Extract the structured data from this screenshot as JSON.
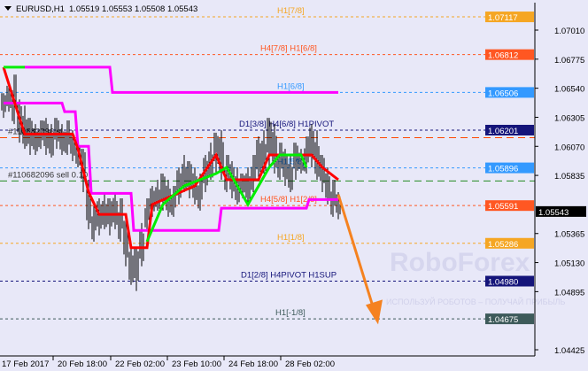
{
  "header": {
    "symbol": "EURUSD,H1",
    "ohlc": "1.05519 1.05553 1.05508 1.05543"
  },
  "watermark": "RoboForex",
  "watermark_sub": "ИСПОЛЬЗУЙ РОБОТОВ – ПОЛУЧАЙ ПРИБЫЛЬ",
  "chart_data": {
    "type": "candlestick",
    "ylim": [
      1.0435,
      1.0725
    ],
    "y_ticks": [
      "1.07010",
      "1.06775",
      "1.06540",
      "1.06305",
      "1.06070",
      "1.05835",
      "1.05365",
      "1.05130",
      "1.04895",
      "1.04425"
    ],
    "x_ticks": [
      "17 Feb 2017",
      "20 Feb 18:00",
      "22 Feb 02:00",
      "23 Feb 10:00",
      "24 Feb 18:00",
      "28 Feb 02:00"
    ],
    "current_price": {
      "label": "1.05543",
      "value": 1.05543
    },
    "levels": [
      {
        "price": 1.07117,
        "label": "H1[7/8]",
        "tag": "1.07117",
        "color": "#f5a623"
      },
      {
        "price": 1.06812,
        "label": "H4[7/8] H1[6/8]",
        "tag": "1.06812",
        "color": "#ff5722"
      },
      {
        "price": 1.06506,
        "label": "H1[6/8]",
        "tag": "1.06506",
        "color": "#3399ff"
      },
      {
        "price": 1.06201,
        "label": "D1[3/8] H4[6/8] H1PIVOT",
        "tag": "1.06201",
        "color": "#14147a"
      },
      {
        "price": 1.05896,
        "label": "H1[5/8]",
        "tag": "1.05896",
        "color": "#3399ff"
      },
      {
        "price": 1.05591,
        "label": "H4[5/8] H1[2/8]",
        "tag": "1.05591",
        "color": "#ff5722"
      },
      {
        "price": 1.05286,
        "label": "H1[1/8]",
        "tag": "1.05286",
        "color": "#f5a623"
      },
      {
        "price": 1.0498,
        "label": "D1[2/8] H4PIVOT H1SUP",
        "tag": "1.04980",
        "color": "#14147a"
      },
      {
        "price": 1.04675,
        "label": "H1[-1/8]",
        "tag": "1.04675",
        "color": "#3d5a5a"
      }
    ],
    "orders": [
      {
        "price": 1.0614,
        "label": "#110682096 sl",
        "color": "#ff4500"
      },
      {
        "price": 1.0579,
        "label": "#110682096 sell 0.10",
        "color": "#228b22"
      }
    ],
    "bars": [
      [
        1.065,
        1.063
      ],
      [
        1.066,
        1.0635
      ],
      [
        1.0665,
        1.0625
      ],
      [
        1.0645,
        1.061
      ],
      [
        1.064,
        1.0605
      ],
      [
        1.063,
        1.06
      ],
      [
        1.0625,
        1.06
      ],
      [
        1.0628,
        1.0605
      ],
      [
        1.063,
        1.06
      ],
      [
        1.0625,
        1.0598
      ],
      [
        1.063,
        1.0605
      ],
      [
        1.0625,
        1.06
      ],
      [
        1.0628,
        1.06
      ],
      [
        1.062,
        1.0595
      ],
      [
        1.0615,
        1.059
      ],
      [
        1.0605,
        1.057
      ],
      [
        1.058,
        1.054
      ],
      [
        1.056,
        1.053
      ],
      [
        1.0565,
        1.0535
      ],
      [
        1.057,
        1.054
      ],
      [
        1.0565,
        1.0535
      ],
      [
        1.057,
        1.054
      ],
      [
        1.0565,
        1.053
      ],
      [
        1.055,
        1.051
      ],
      [
        1.053,
        1.0495
      ],
      [
        1.0525,
        1.049
      ],
      [
        1.0545,
        1.051
      ],
      [
        1.0565,
        1.054
      ],
      [
        1.0575,
        1.055
      ],
      [
        1.058,
        1.0555
      ],
      [
        1.0585,
        1.0555
      ],
      [
        1.058,
        1.055
      ],
      [
        1.0575,
        1.055
      ],
      [
        1.059,
        1.056
      ],
      [
        1.06,
        1.057
      ],
      [
        1.0595,
        1.0565
      ],
      [
        1.059,
        1.056
      ],
      [
        1.0585,
        1.0555
      ],
      [
        1.06,
        1.057
      ],
      [
        1.061,
        1.058
      ],
      [
        1.0618,
        1.0585
      ],
      [
        1.062,
        1.058
      ],
      [
        1.06,
        1.057
      ],
      [
        1.0595,
        1.0565
      ],
      [
        1.059,
        1.056
      ],
      [
        1.0585,
        1.0565
      ],
      [
        1.059,
        1.056
      ],
      [
        1.06,
        1.057
      ],
      [
        1.0615,
        1.058
      ],
      [
        1.062,
        1.0585
      ],
      [
        1.063,
        1.059
      ],
      [
        1.0625,
        1.0585
      ],
      [
        1.061,
        1.058
      ],
      [
        1.0605,
        1.0575
      ],
      [
        1.06,
        1.057
      ],
      [
        1.061,
        1.058
      ],
      [
        1.0605,
        1.0585
      ],
      [
        1.0615,
        1.0585
      ],
      [
        1.0625,
        1.059
      ],
      [
        1.062,
        1.058
      ],
      [
        1.06,
        1.057
      ],
      [
        1.059,
        1.056
      ],
      [
        1.058,
        1.055
      ],
      [
        1.057,
        1.0548
      ]
    ],
    "indicators": [
      {
        "color": "#ff00ff",
        "points": [
          [
            4,
            1.0671
          ],
          [
            20,
            1.0671
          ],
          [
            20.5,
            1.06506
          ],
          [
            63,
            1.06506
          ]
        ]
      },
      {
        "color": "#ff00ff",
        "points": [
          [
            0,
            1.0642
          ],
          [
            11,
            1.0642
          ],
          [
            11.5,
            1.0635
          ],
          [
            13.5,
            1.0635
          ],
          [
            14,
            1.0607
          ],
          [
            16,
            1.0607
          ],
          [
            16.5,
            1.0569
          ],
          [
            24,
            1.0569
          ],
          [
            24.5,
            1.0539
          ],
          [
            40.5,
            1.0539
          ],
          [
            41,
            1.0557
          ],
          [
            57,
            1.0557
          ],
          [
            57.5,
            1.0564
          ],
          [
            63,
            1.0564
          ]
        ]
      },
      {
        "color": "#ff0000",
        "points": [
          [
            0,
            1.0671
          ],
          [
            3,
            1.063
          ],
          [
            4,
            1.0617
          ],
          [
            13,
            1.0617
          ],
          [
            14,
            1.0605
          ],
          [
            16,
            1.057
          ],
          [
            18,
            1.0552
          ],
          [
            23,
            1.0552
          ],
          [
            24,
            1.0525
          ],
          [
            27,
            1.0525
          ],
          [
            28,
            1.056
          ],
          [
            36,
            1.0575
          ],
          [
            40,
            1.06
          ],
          [
            42,
            1.058
          ],
          [
            48,
            1.058
          ],
          [
            50,
            1.06
          ],
          [
            58,
            1.06
          ],
          [
            60,
            1.059
          ],
          [
            63,
            1.058
          ]
        ]
      },
      {
        "color": "#00ee00",
        "points": [
          [
            0,
            1.0671
          ],
          [
            4,
            1.0671
          ]
        ]
      },
      {
        "color": "#00ee00",
        "points": [
          [
            27,
            1.053
          ],
          [
            30,
            1.056
          ],
          [
            34,
            1.0575
          ],
          [
            40,
            1.0585
          ],
          [
            42,
            1.059
          ],
          [
            46,
            1.056
          ],
          [
            50,
            1.059
          ],
          [
            52,
            1.06
          ],
          [
            56,
            1.06
          ],
          [
            57,
            1.059
          ]
        ]
      }
    ],
    "forecast_arrow": {
      "color": "#f58220",
      "from": [
        63,
        1.0568
      ],
      "to": [
        69,
        1.0463
      ]
    }
  }
}
